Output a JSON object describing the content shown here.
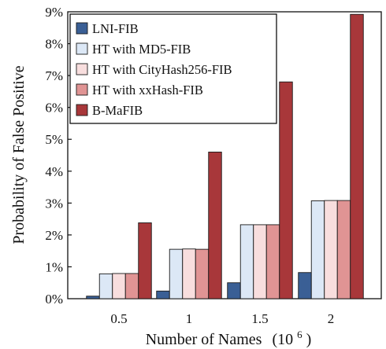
{
  "chart_data": {
    "type": "bar",
    "title": "",
    "xlabel": "Number of Names",
    "xlabel_unit": "(10",
    "xlabel_exponent": "6",
    "xlabel_close": ")",
    "ylabel": "Probability of False Positive",
    "ylim": [
      0,
      9
    ],
    "yticks": [
      "0%",
      "1%",
      "2%",
      "3%",
      "4%",
      "5%",
      "6%",
      "7%",
      "8%",
      "9%"
    ],
    "categories": [
      "0.5",
      "1",
      "1.5",
      "2"
    ],
    "legend_position": "top-left",
    "grid": false,
    "series": [
      {
        "name": "LNI-FIB",
        "color": "#3a5f95",
        "values": [
          0.08,
          0.24,
          0.5,
          0.82
        ]
      },
      {
        "name": "HT with MD5-FIB",
        "color": "#dce8f6",
        "values": [
          0.78,
          1.55,
          2.32,
          3.07
        ]
      },
      {
        "name": "HT with CityHash256-FIB",
        "color": "#f8dede",
        "values": [
          0.79,
          1.56,
          2.32,
          3.08
        ]
      },
      {
        "name": "HT with xxHash-FIB",
        "color": "#e09494",
        "values": [
          0.79,
          1.55,
          2.32,
          3.08
        ]
      },
      {
        "name": "B-MaFIB",
        "color": "#a8373a",
        "values": [
          2.38,
          4.6,
          6.8,
          8.92
        ]
      }
    ]
  }
}
